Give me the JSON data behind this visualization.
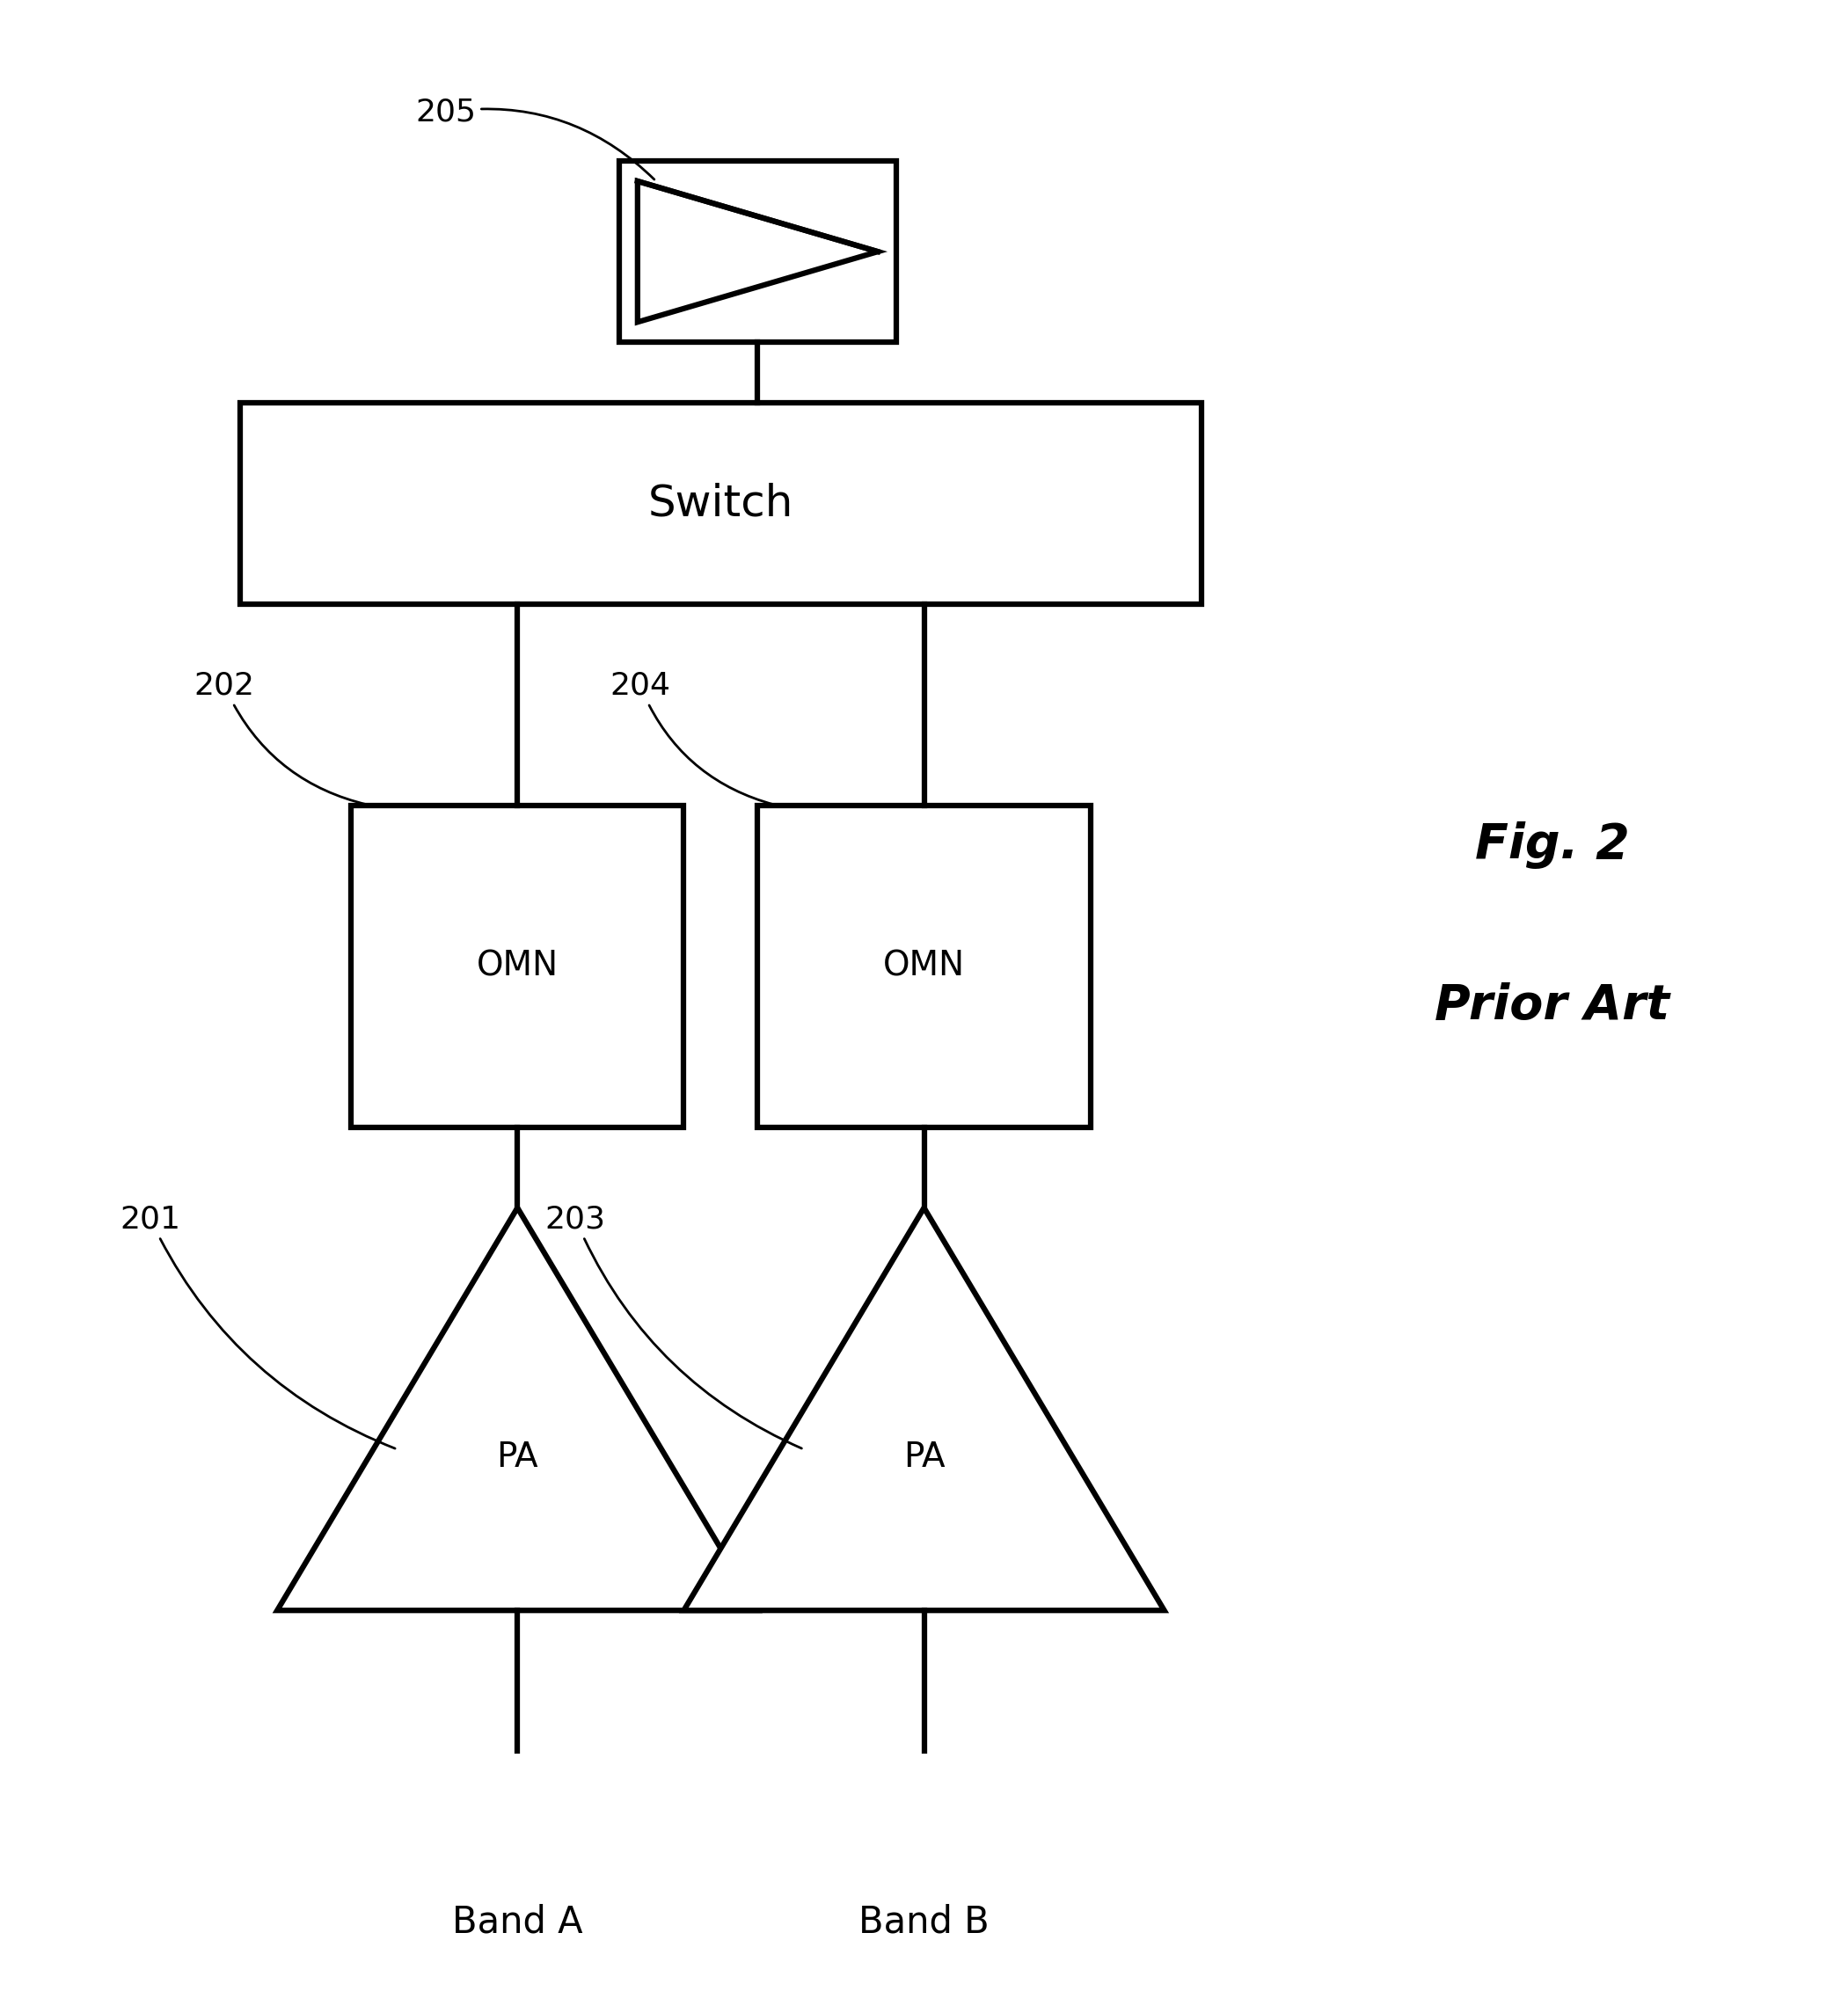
{
  "bg_color": "#ffffff",
  "line_color": "#000000",
  "lw": 4.5,
  "fig_width": 21.01,
  "fig_height": 22.89,
  "switch_label": "Switch",
  "switch_label_fontsize": 36,
  "omn_label": "OMN",
  "omn_label_fontsize": 28,
  "pa_label": "PA",
  "pa_label_fontsize": 28,
  "label_201": "201",
  "label_202": "202",
  "label_203": "203",
  "label_204": "204",
  "label_205": "205",
  "ref_label_fontsize": 26,
  "band_a_label": "Band A",
  "band_b_label": "Band B",
  "band_label_fontsize": 30,
  "fig2_label": "Fig. 2",
  "prior_art_label": "Prior Art",
  "fig_label_fontsize": 40
}
